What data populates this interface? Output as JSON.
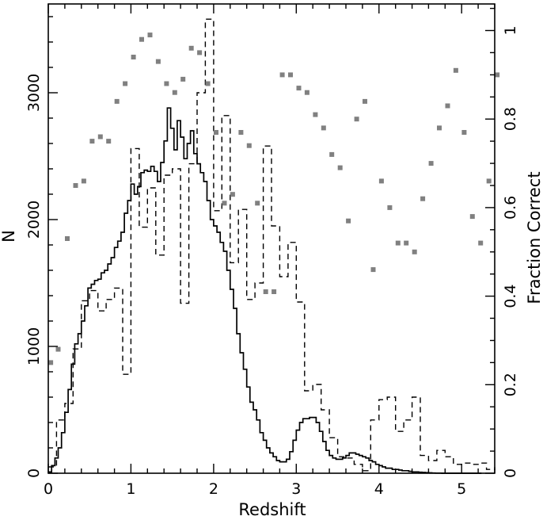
{
  "chart_data": {
    "type": "line",
    "xlabel": "Redshift",
    "ylabel": "N",
    "y2label": "Fraction Correct",
    "xlim": [
      0,
      5.4
    ],
    "ylim": [
      0,
      3700
    ],
    "y2lim": [
      0,
      1.06
    ],
    "x_ticks": [
      0,
      1,
      2,
      3,
      4,
      5
    ],
    "y_ticks": [
      0,
      1000,
      2000,
      3000
    ],
    "y2_ticks": [
      0,
      0.2,
      0.4,
      0.6,
      0.8,
      1
    ],
    "x_tick_labels": [
      "0",
      "1",
      "2",
      "3",
      "4",
      "5"
    ],
    "y_tick_labels": [
      "0",
      "1000",
      "2000",
      "3000"
    ],
    "y2_tick_labels": [
      "0",
      "0.2",
      "0.4",
      "0.6",
      "0.8",
      "1"
    ],
    "series": [
      {
        "style": "solid-step",
        "color": "#000000",
        "bin_start": 0,
        "bin_width": 0.04,
        "values": [
          10,
          60,
          120,
          200,
          320,
          480,
          660,
          860,
          1020,
          1100,
          1200,
          1320,
          1460,
          1490,
          1520,
          1530,
          1580,
          1600,
          1650,
          1700,
          1780,
          1830,
          1900,
          2050,
          2150,
          2280,
          2200,
          2260,
          2370,
          2390,
          2380,
          2420,
          2380,
          2300,
          2450,
          2620,
          2880,
          2720,
          2550,
          2780,
          2650,
          2480,
          2600,
          2700,
          2520,
          2440,
          2370,
          2300,
          2150,
          2000,
          1950,
          1900,
          1820,
          1750,
          1600,
          1450,
          1300,
          1100,
          950,
          820,
          680,
          560,
          500,
          420,
          320,
          260,
          200,
          160,
          130,
          100,
          90,
          90,
          110,
          170,
          260,
          340,
          400,
          430,
          430,
          440,
          440,
          400,
          330,
          250,
          180,
          140,
          120,
          110,
          110,
          120,
          140,
          160,
          160,
          150,
          140,
          130,
          120,
          100,
          90,
          70,
          60,
          50,
          40,
          40,
          30,
          30,
          25,
          20,
          20,
          15,
          10,
          10,
          8,
          6,
          5,
          3,
          2,
          1,
          1,
          0,
          0,
          0,
          0,
          0,
          0,
          0,
          0,
          0,
          0,
          0,
          0
        ]
      },
      {
        "style": "dashed-step",
        "color": "#000000",
        "bin_start": 0,
        "bin_width": 0.1,
        "values": [
          50,
          420,
          550,
          980,
          1360,
          1440,
          1280,
          1370,
          1460,
          780,
          2560,
          1940,
          2250,
          1720,
          2350,
          2400,
          1340,
          2440,
          3000,
          3580,
          2070,
          2820,
          1660,
          2080,
          1370,
          1500,
          2580,
          1950,
          1550,
          1820,
          1350,
          650,
          700,
          500,
          280,
          130,
          120,
          70,
          20,
          420,
          580,
          600,
          330,
          420,
          600,
          140,
          100,
          180,
          130,
          70,
          80,
          70,
          80,
          30,
          50,
          30,
          20,
          10,
          10,
          5,
          0,
          0,
          0,
          0,
          0,
          0,
          0,
          0,
          0,
          0,
          0,
          0,
          0,
          0,
          0,
          0,
          0,
          0,
          0,
          0,
          0
        ]
      },
      {
        "name": "Fraction Correct",
        "style": "markers",
        "color": "#808080",
        "axis": "right",
        "x": [
          0.03,
          0.12,
          0.23,
          0.33,
          0.43,
          0.53,
          0.63,
          0.73,
          0.83,
          0.93,
          1.03,
          1.13,
          1.23,
          1.33,
          1.43,
          1.53,
          1.63,
          1.73,
          1.83,
          1.93,
          2.03,
          2.13,
          2.23,
          2.33,
          2.43,
          2.53,
          2.63,
          2.73,
          2.83,
          2.93,
          3.03,
          3.13,
          3.23,
          3.33,
          3.43,
          3.53,
          3.63,
          3.73,
          3.83,
          3.93,
          4.03,
          4.13,
          4.23,
          4.33,
          4.43,
          4.53,
          4.63,
          4.73,
          4.83,
          4.93,
          5.03,
          5.13,
          5.23,
          5.33,
          5.43
        ],
        "y": [
          0.25,
          0.28,
          0.53,
          0.65,
          0.66,
          0.75,
          0.76,
          0.75,
          0.84,
          0.88,
          0.94,
          0.98,
          0.99,
          0.93,
          0.88,
          0.86,
          0.89,
          0.96,
          0.95,
          0.88,
          0.77,
          0.61,
          0.63,
          0.77,
          0.74,
          0.61,
          0.41,
          0.41,
          0.9,
          0.9,
          0.87,
          0.86,
          0.81,
          0.78,
          0.72,
          0.69,
          0.57,
          0.8,
          0.84,
          0.46,
          0.66,
          0.6,
          0.52,
          0.52,
          0.5,
          0.62,
          0.7,
          0.78,
          0.83,
          0.91,
          0.77,
          0.58,
          0.52,
          0.66,
          0.9
        ]
      }
    ]
  }
}
